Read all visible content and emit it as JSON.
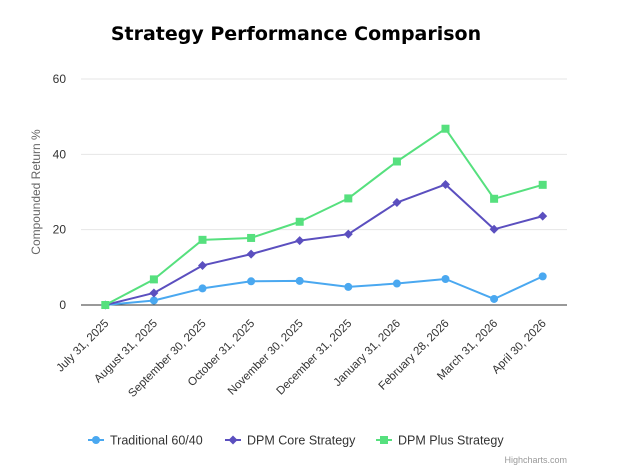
{
  "chart_data": {
    "type": "line",
    "title": "Strategy Performance Comparison",
    "ylabel": "Compounded Return %",
    "xlabel": "",
    "categories": [
      "July 31, 2025",
      "August 31, 2025",
      "September 30, 2025",
      "October 31, 2025",
      "November 30, 2025",
      "December 31, 2025",
      "January 31, 2026",
      "February 28, 2026",
      "March 31, 2026",
      "April 30, 2026"
    ],
    "ylim": [
      0,
      60
    ],
    "yticks": [
      "0",
      "20",
      "40",
      "60"
    ],
    "grid": true,
    "legend_position": "bottom",
    "series": [
      {
        "name": "Traditional 60/40",
        "color": "#4aa8f0",
        "marker": "circle",
        "values": [
          0,
          1.2,
          4.4,
          6.3,
          6.4,
          4.8,
          5.7,
          6.9,
          1.6,
          7.6
        ]
      },
      {
        "name": "DPM Core Strategy",
        "color": "#5b4fbf",
        "marker": "diamond",
        "values": [
          0,
          3.2,
          10.5,
          13.5,
          17.1,
          18.8,
          27.2,
          32.0,
          20.1,
          23.6
        ]
      },
      {
        "name": "DPM Plus Strategy",
        "color": "#56e07e",
        "marker": "square",
        "values": [
          0,
          6.8,
          17.3,
          17.8,
          22.1,
          28.3,
          38.1,
          46.8,
          28.2,
          31.9
        ]
      }
    ]
  },
  "credits": "Highcharts.com"
}
